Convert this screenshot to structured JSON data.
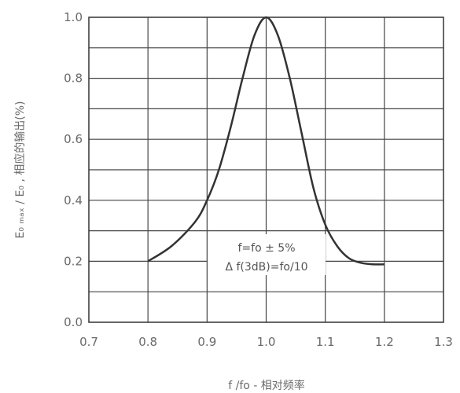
{
  "chart_data": {
    "type": "line",
    "title": "",
    "xlabel": "f /fo - 相对频率",
    "ylabel": "E₀ ₘₐₓ / E₀ , 相应的输出(%)",
    "xlim": [
      0.7,
      1.3
    ],
    "ylim": [
      0.0,
      1.0
    ],
    "x_ticks": [
      "0.7",
      "0.8",
      "0.9",
      "1.0",
      "1.1",
      "1.2",
      "1.3"
    ],
    "y_ticks": [
      "0.0",
      "0.2",
      "0.4",
      "0.6",
      "0.8",
      "1.0"
    ],
    "grid": true,
    "annotations": [
      "f=fo ± 5%",
      "Δ f(3dB)=fo/10"
    ],
    "series": [
      {
        "color": "#333333",
        "x": [
          0.8,
          0.84,
          0.88,
          0.9,
          0.92,
          0.94,
          0.96,
          0.98,
          1.0,
          1.02,
          1.04,
          1.06,
          1.08,
          1.1,
          1.12,
          1.14,
          1.16,
          1.18,
          1.2
        ],
        "y": [
          0.2,
          0.25,
          0.33,
          0.4,
          0.5,
          0.64,
          0.8,
          0.94,
          1.0,
          0.94,
          0.8,
          0.62,
          0.44,
          0.32,
          0.25,
          0.21,
          0.195,
          0.19,
          0.19
        ]
      }
    ]
  }
}
